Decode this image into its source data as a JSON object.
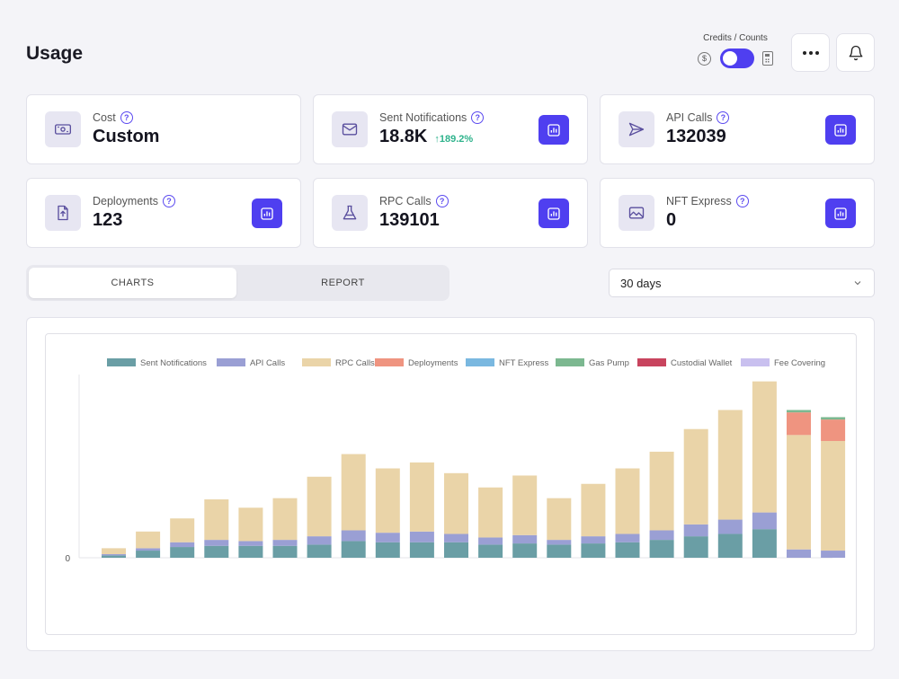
{
  "page": {
    "title": "Usage"
  },
  "toggle": {
    "caption": "Credits / Counts",
    "left_icon": "dollar-icon",
    "right_icon": "calculator-icon",
    "state": "counts"
  },
  "header": {
    "more_icon": "more-horizontal-icon",
    "bell_icon": "bell-icon"
  },
  "stats": [
    {
      "label": "Cost",
      "value": "Custom",
      "icon": "cash-icon",
      "has_chart": false
    },
    {
      "label": "Sent Notifications",
      "value": "18.8K",
      "delta": "189.2%",
      "icon": "mail-icon",
      "has_chart": true
    },
    {
      "label": "API Calls",
      "value": "132039",
      "icon": "send-icon",
      "has_chart": true
    },
    {
      "label": "Deployments",
      "value": "123",
      "icon": "upload-file-icon",
      "has_chart": true
    },
    {
      "label": "RPC Calls",
      "value": "139101",
      "icon": "flask-icon",
      "has_chart": true
    },
    {
      "label": "NFT Express",
      "value": "0",
      "icon": "image-icon",
      "has_chart": true
    }
  ],
  "help_glyph": "?",
  "tabs": [
    {
      "label": "CHARTS",
      "active": true
    },
    {
      "label": "REPORT",
      "active": false
    }
  ],
  "range": {
    "selected": "30 days"
  },
  "colors": {
    "accent": "#4f3ff0",
    "positive": "#2fb38c"
  },
  "chart_data": {
    "type": "bar",
    "stacked": true,
    "legend_position": "top",
    "grid": false,
    "y_tick_labels": [
      "0"
    ],
    "series": [
      {
        "name": "Sent Notifications",
        "color": "#6a9ea5",
        "values": [
          2,
          6,
          9,
          10,
          10,
          10,
          11,
          14,
          13,
          13,
          13,
          11,
          12,
          11,
          12,
          13,
          15,
          18,
          20,
          24,
          0,
          0
        ]
      },
      {
        "name": "API Calls",
        "color": "#9a9fd4",
        "values": [
          1,
          2,
          4,
          5,
          4,
          5,
          7,
          9,
          8,
          9,
          7,
          6,
          7,
          4,
          6,
          7,
          8,
          10,
          12,
          14,
          7,
          6
        ]
      },
      {
        "name": "RPC Calls",
        "color": "#ead4a8",
        "values": [
          5,
          14,
          20,
          34,
          28,
          35,
          50,
          64,
          54,
          58,
          51,
          42,
          50,
          35,
          44,
          55,
          66,
          80,
          92,
          110,
          96,
          92
        ]
      },
      {
        "name": "Deployments",
        "color": "#ef9480",
        "values": [
          0,
          0,
          0,
          0,
          0,
          0,
          0,
          0,
          0,
          0,
          0,
          0,
          0,
          0,
          0,
          0,
          0,
          0,
          0,
          0,
          19,
          18
        ]
      },
      {
        "name": "NFT Express",
        "color": "#7ab8e0",
        "values": [
          0,
          0,
          0,
          0,
          0,
          0,
          0,
          0,
          0,
          0,
          0,
          0,
          0,
          0,
          0,
          0,
          0,
          0,
          0,
          0,
          0,
          0
        ]
      },
      {
        "name": "Gas Pump",
        "color": "#7cb890",
        "values": [
          0,
          0,
          0,
          0,
          0,
          0,
          0,
          0,
          0,
          0,
          0,
          0,
          0,
          0,
          0,
          0,
          0,
          0,
          0,
          0,
          2,
          2
        ]
      },
      {
        "name": "Custodial Wallet",
        "color": "#c8445e",
        "values": [
          0,
          0,
          0,
          0,
          0,
          0,
          0,
          0,
          0,
          0,
          0,
          0,
          0,
          0,
          0,
          0,
          0,
          0,
          0,
          0,
          0,
          0
        ]
      },
      {
        "name": "Fee Covering",
        "color": "#c9c0ef",
        "values": [
          0,
          0,
          0,
          0,
          0,
          0,
          0,
          0,
          0,
          0,
          0,
          0,
          0,
          0,
          0,
          0,
          0,
          0,
          0,
          0,
          0,
          0
        ]
      }
    ]
  }
}
